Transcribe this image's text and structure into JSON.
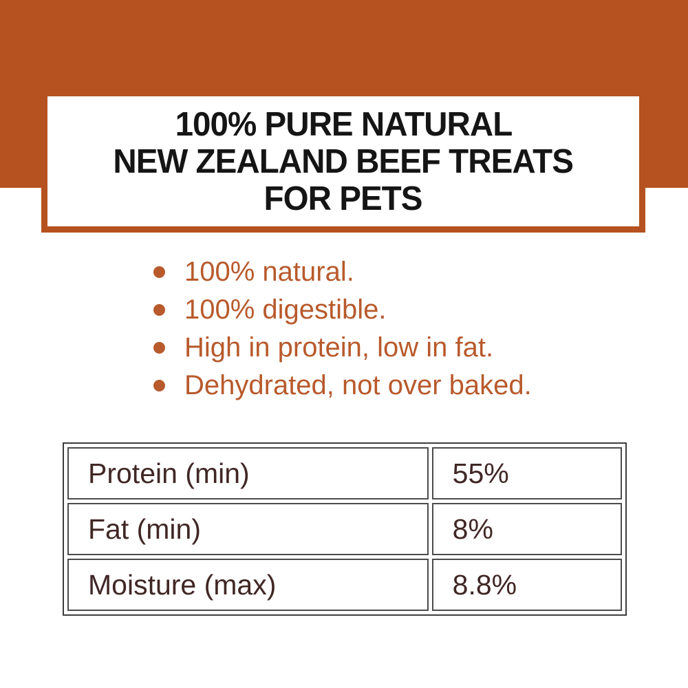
{
  "colors": {
    "accent": "#b5521f",
    "list-text": "#b85a2c",
    "title-text": "#151515",
    "table-text": "#402726",
    "table-border-outer": "#3d3d3d",
    "table-border-cell": "#4b4b4b",
    "page-bg": "#ffffff"
  },
  "banner": {
    "title_lines": [
      "100% PURE NATURAL",
      "NEW ZEALAND BEEF TREATS",
      "FOR PETS"
    ]
  },
  "features": {
    "items": [
      "100% natural.",
      "100% digestible.",
      "High in protein, low in fat.",
      "Dehydrated, not over baked."
    ]
  },
  "nutrition_table": {
    "rows": [
      {
        "label": "Protein (min)",
        "value": "55%"
      },
      {
        "label": "Fat (min)",
        "value": "8%"
      },
      {
        "label": "Moisture (max)",
        "value": "8.8%"
      }
    ]
  }
}
